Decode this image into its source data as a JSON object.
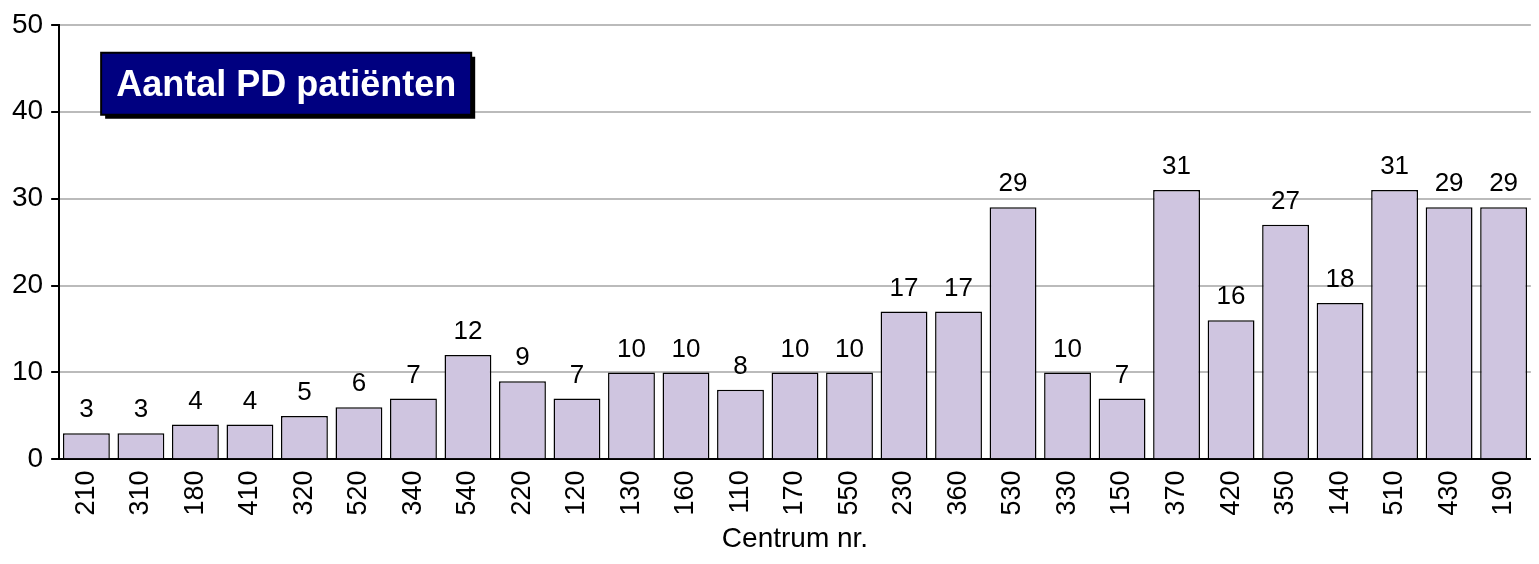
{
  "chart_data": {
    "type": "bar",
    "title": "Aantal PD patiënten",
    "xlabel": "Centrum nr.",
    "categories": [
      "210",
      "310",
      "180",
      "410",
      "320",
      "520",
      "340",
      "540",
      "220",
      "120",
      "130",
      "160",
      "110",
      "170",
      "550",
      "230",
      "360",
      "530",
      "330",
      "150",
      "370",
      "420",
      "350",
      "140",
      "510",
      "430",
      "190"
    ],
    "values": [
      3,
      3,
      4,
      4,
      5,
      6,
      7,
      12,
      9,
      7,
      10,
      10,
      8,
      10,
      10,
      17,
      17,
      29,
      10,
      7,
      31,
      16,
      27,
      18,
      31,
      29,
      29
    ],
    "color": "#cfc5e0",
    "ylim": [
      0,
      50
    ],
    "yticks": [
      0,
      10,
      20,
      30,
      40,
      50
    ],
    "grid": "y",
    "data_labels": true,
    "legend": false
  }
}
